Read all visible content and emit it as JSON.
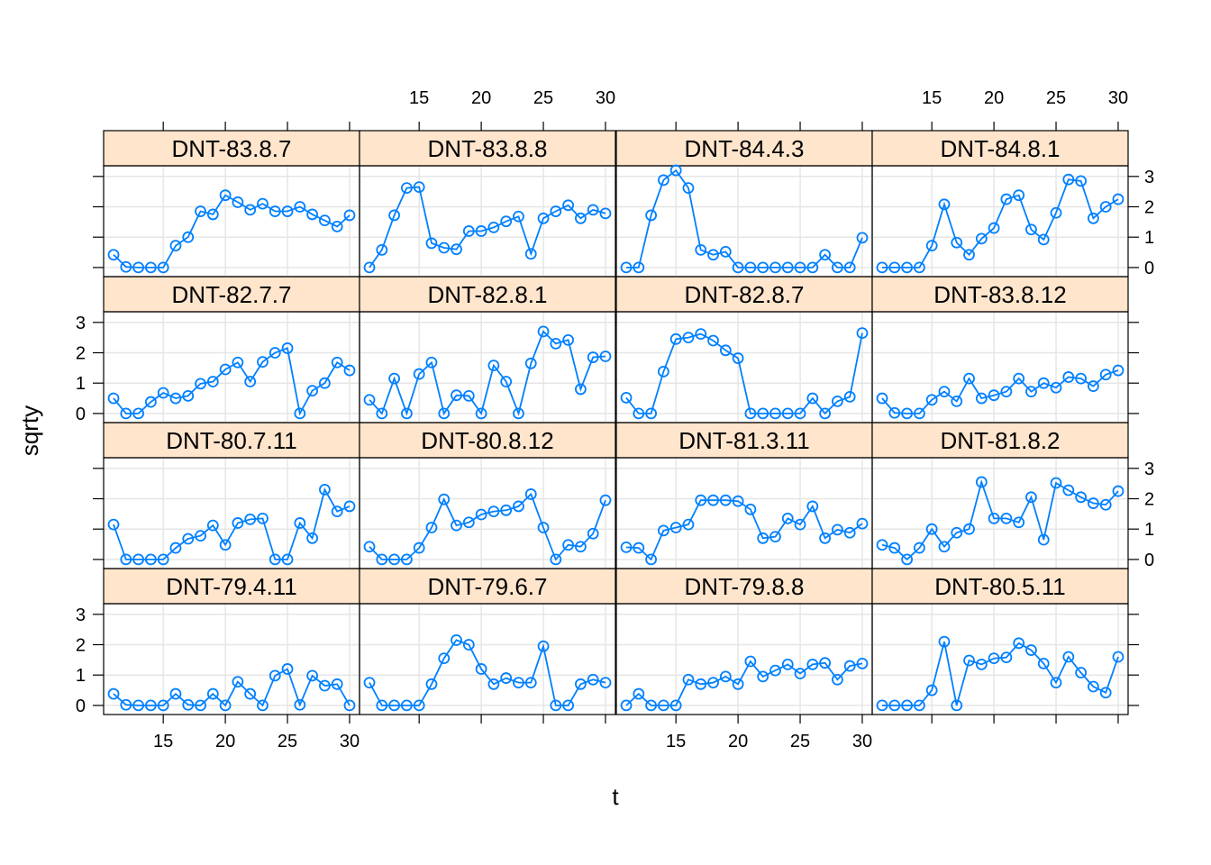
{
  "chart_data": {
    "type": "line",
    "xlabel": "t",
    "ylabel": "sqrty",
    "xlim": [
      10.2,
      30.8
    ],
    "ylim": [
      -0.3,
      3.35
    ],
    "x_ticks": [
      15,
      20,
      25,
      30
    ],
    "y_ticks": [
      0,
      1,
      2,
      3
    ],
    "x": [
      11,
      12,
      13,
      14,
      15,
      16,
      17,
      18,
      19,
      20,
      21,
      22,
      23,
      24,
      25,
      26,
      27,
      28,
      29,
      30
    ],
    "strip_color": "#ffe5cc",
    "line_color": "#0080ff",
    "grid_color": "#e6e6e6",
    "layout": "4 columns x 4 rows, bottom-left panel first",
    "panels": [
      {
        "name": "DNT-79.4.11",
        "values": [
          0.38,
          0.02,
          0,
          0,
          0,
          0.38,
          0.02,
          0,
          0.38,
          0,
          0.78,
          0.38,
          0,
          0.98,
          1.2,
          0.02,
          0.98,
          0.65,
          0.7,
          0
        ]
      },
      {
        "name": "DNT-79.6.7",
        "values": [
          0.75,
          0,
          0,
          0,
          0,
          0.7,
          1.55,
          2.15,
          2.0,
          1.2,
          0.7,
          0.9,
          0.75,
          0.75,
          1.95,
          0,
          0,
          0.7,
          0.85,
          0.75
        ]
      },
      {
        "name": "DNT-79.8.8",
        "values": [
          0,
          0.38,
          0,
          0,
          0,
          0.85,
          0.7,
          0.75,
          0.95,
          0.7,
          1.45,
          0.95,
          1.15,
          1.35,
          1.05,
          1.35,
          1.4,
          0.85,
          1.3,
          1.38
        ]
      },
      {
        "name": "DNT-80.5.11",
        "values": [
          0,
          0,
          0,
          0,
          0.5,
          2.1,
          0,
          1.48,
          1.35,
          1.55,
          1.58,
          2.05,
          1.82,
          1.38,
          0.75,
          1.6,
          1.08,
          0.62,
          0.42,
          1.6
        ]
      },
      {
        "name": "DNT-80.7.11",
        "values": [
          1.15,
          0,
          0,
          0,
          0,
          0.38,
          0.68,
          0.78,
          1.12,
          0.48,
          1.2,
          1.32,
          1.35,
          0,
          0,
          1.2,
          0.7,
          2.3,
          1.58,
          1.75
        ]
      },
      {
        "name": "DNT-80.8.12",
        "values": [
          0.42,
          0,
          0,
          0,
          0.38,
          1.05,
          1.98,
          1.12,
          1.22,
          1.48,
          1.58,
          1.62,
          1.75,
          2.15,
          1.05,
          0,
          0.48,
          0.42,
          0.85,
          1.95
        ]
      },
      {
        "name": "DNT-81.3.11",
        "values": [
          0.4,
          0.38,
          0,
          0.95,
          1.05,
          1.15,
          1.95,
          1.95,
          1.95,
          1.92,
          1.65,
          0.7,
          0.75,
          1.35,
          1.15,
          1.75,
          0.7,
          0.98,
          0.88,
          1.18
        ]
      },
      {
        "name": "DNT-81.8.2",
        "values": [
          0.48,
          0.38,
          0,
          0.38,
          1.0,
          0.42,
          0.88,
          1.0,
          2.55,
          1.35,
          1.35,
          1.22,
          2.05,
          0.65,
          2.52,
          2.28,
          2.05,
          1.85,
          1.8,
          2.25
        ]
      },
      {
        "name": "DNT-82.7.7",
        "values": [
          0.5,
          0,
          0,
          0.38,
          0.68,
          0.5,
          0.58,
          0.98,
          1.05,
          1.45,
          1.68,
          1.05,
          1.7,
          2.0,
          2.15,
          0,
          0.75,
          1.0,
          1.68,
          1.42
        ]
      },
      {
        "name": "DNT-82.8.1",
        "values": [
          0.45,
          0,
          1.15,
          0,
          1.3,
          1.68,
          0,
          0.6,
          0.58,
          0,
          1.58,
          1.05,
          0,
          1.65,
          2.7,
          2.3,
          2.42,
          0.8,
          1.85,
          1.88
        ]
      },
      {
        "name": "DNT-82.8.7",
        "values": [
          0.52,
          0,
          0,
          1.38,
          2.45,
          2.5,
          2.62,
          2.4,
          2.08,
          1.82,
          0,
          0,
          0,
          0,
          0,
          0.5,
          0,
          0.4,
          0.55,
          2.65
        ]
      },
      {
        "name": "DNT-83.8.12",
        "values": [
          0.5,
          0.02,
          0,
          0,
          0.45,
          0.72,
          0.4,
          1.15,
          0.5,
          0.6,
          0.72,
          1.15,
          0.72,
          1.0,
          0.85,
          1.2,
          1.15,
          0.9,
          1.28,
          1.42
        ]
      },
      {
        "name": "DNT-83.8.7",
        "values": [
          0.42,
          0.02,
          0,
          0,
          0,
          0.72,
          1.0,
          1.85,
          1.75,
          2.38,
          2.15,
          1.9,
          2.1,
          1.85,
          1.85,
          2.0,
          1.75,
          1.55,
          1.35,
          1.72
        ]
      },
      {
        "name": "DNT-83.8.8",
        "values": [
          0,
          0.58,
          1.72,
          2.62,
          2.65,
          0.8,
          0.65,
          0.6,
          1.2,
          1.2,
          1.32,
          1.52,
          1.68,
          0.45,
          1.62,
          1.85,
          2.05,
          1.62,
          1.9,
          1.78
        ]
      },
      {
        "name": "DNT-84.4.3",
        "values": [
          0,
          0,
          1.72,
          2.88,
          3.2,
          2.62,
          0.58,
          0.42,
          0.52,
          0,
          0,
          0,
          0,
          0,
          0,
          0,
          0.42,
          0,
          0,
          0.98
        ]
      },
      {
        "name": "DNT-84.8.1",
        "values": [
          0,
          0,
          0,
          0,
          0.72,
          2.08,
          0.82,
          0.42,
          0.95,
          1.3,
          2.25,
          2.38,
          1.25,
          0.92,
          1.8,
          2.9,
          2.85,
          1.62,
          2.0,
          2.25
        ]
      }
    ]
  }
}
